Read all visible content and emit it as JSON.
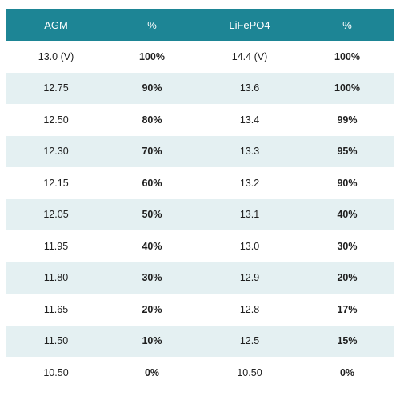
{
  "table": {
    "headers": [
      "AGM",
      "%",
      "LiFePO4",
      "%"
    ],
    "rows": [
      [
        "13.0 (V)",
        "100%",
        "14.4 (V)",
        "100%"
      ],
      [
        "12.75",
        "90%",
        "13.6",
        "100%"
      ],
      [
        "12.50",
        "80%",
        "13.4",
        "99%"
      ],
      [
        "12.30",
        "70%",
        "13.3",
        "95%"
      ],
      [
        "12.15",
        "60%",
        "13.2",
        "90%"
      ],
      [
        "12.05",
        "50%",
        "13.1",
        "40%"
      ],
      [
        "11.95",
        "40%",
        "13.0",
        "30%"
      ],
      [
        "11.80",
        "30%",
        "12.9",
        "20%"
      ],
      [
        "11.65",
        "20%",
        "12.8",
        "17%"
      ],
      [
        "11.50",
        "10%",
        "12.5",
        "15%"
      ],
      [
        "10.50",
        "0%",
        "10.50",
        "0%"
      ]
    ]
  },
  "colors": {
    "header_background": "#1d8595",
    "header_text": "#ffffff",
    "stripe_background": "#e4f0f2"
  }
}
